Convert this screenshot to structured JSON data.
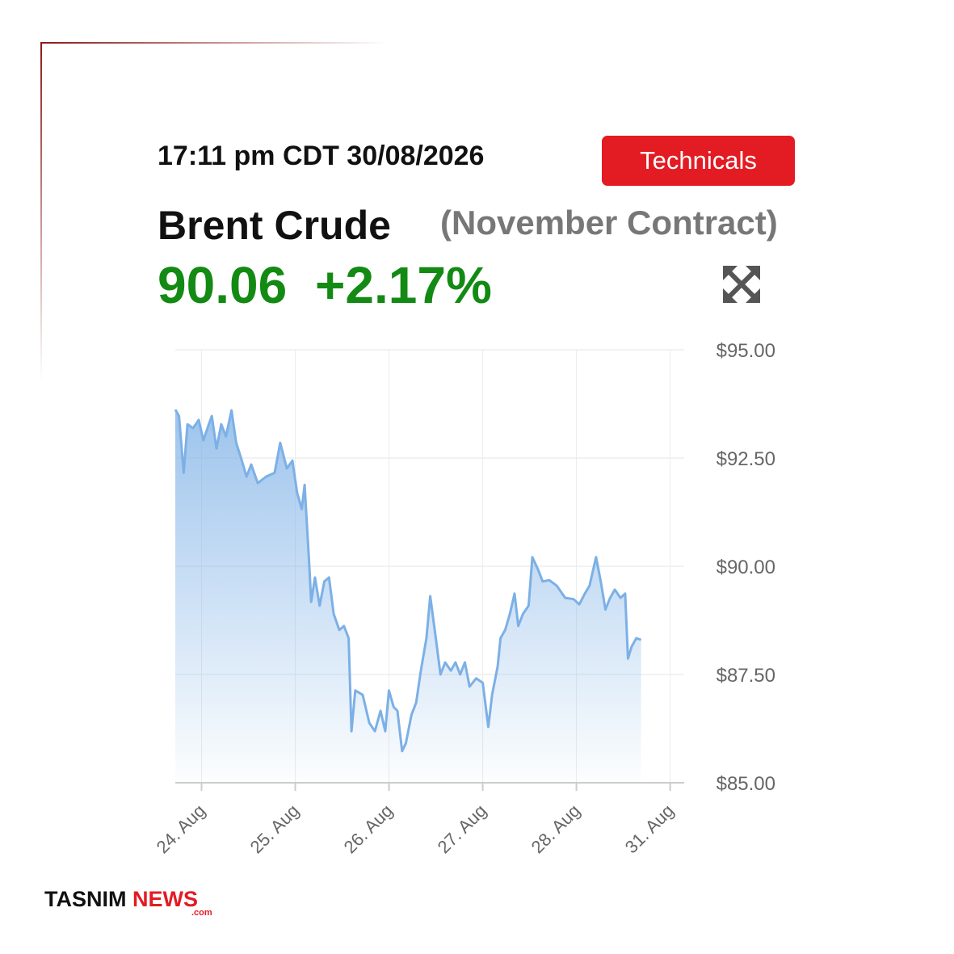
{
  "header": {
    "timestamp": "17:11 pm CDT 30/08/2026",
    "button": "Technicals",
    "title": "Brent Crude",
    "subtitle": "(November Contract)",
    "price": "90.06",
    "change": "+2.17%"
  },
  "chart_data": {
    "type": "area",
    "color": "#7cb0e6",
    "grid": true,
    "x": [
      -0.28,
      -0.24,
      -0.19,
      -0.15,
      -0.09,
      -0.03,
      0.02,
      0.07,
      0.11,
      0.16,
      0.21,
      0.26,
      0.32,
      0.37,
      0.43,
      0.48,
      0.53,
      0.6,
      0.69,
      0.78,
      0.84,
      0.91,
      0.97,
      1.02,
      1.07,
      1.1,
      1.15,
      1.17,
      1.21,
      1.26,
      1.31,
      1.36,
      1.41,
      1.47,
      1.52,
      1.57,
      1.6,
      1.64,
      1.72,
      1.79,
      1.85,
      1.91,
      1.96,
      2.0,
      2.05,
      2.09,
      2.14,
      2.18,
      2.24,
      2.29,
      2.34,
      2.4,
      2.44,
      2.5,
      2.55,
      2.6,
      2.66,
      2.71,
      2.76,
      2.81,
      2.86,
      2.93,
      3.0,
      3.06,
      3.1,
      3.16,
      3.19,
      3.24,
      3.29,
      3.34,
      3.38,
      3.43,
      3.49,
      3.53,
      3.59,
      3.64,
      3.71,
      3.79,
      3.88,
      3.97,
      4.03,
      4.09,
      4.14,
      4.21,
      4.26,
      4.31,
      4.36,
      4.41,
      4.47,
      4.52,
      4.55,
      4.59,
      4.64,
      4.69
    ],
    "values": [
      93.62,
      93.47,
      92.16,
      93.28,
      93.19,
      93.38,
      92.91,
      93.23,
      93.47,
      92.72,
      93.28,
      93.0,
      93.6,
      92.85,
      92.44,
      92.07,
      92.35,
      91.92,
      92.07,
      92.16,
      92.85,
      92.26,
      92.44,
      91.7,
      91.32,
      91.88,
      90.02,
      89.18,
      89.74,
      89.09,
      89.65,
      89.74,
      88.9,
      88.53,
      88.62,
      88.34,
      86.19,
      87.13,
      87.03,
      86.38,
      86.19,
      86.66,
      86.19,
      87.13,
      86.75,
      86.66,
      85.73,
      85.91,
      86.57,
      86.85,
      87.59,
      88.34,
      89.31,
      88.34,
      87.5,
      87.78,
      87.59,
      87.78,
      87.5,
      87.78,
      87.22,
      87.41,
      87.31,
      86.29,
      87.03,
      87.69,
      88.34,
      88.53,
      88.9,
      89.37,
      88.62,
      88.9,
      89.09,
      90.21,
      89.93,
      89.65,
      89.68,
      89.55,
      89.27,
      89.24,
      89.12,
      89.37,
      89.55,
      90.21,
      89.65,
      89.0,
      89.27,
      89.46,
      89.27,
      89.37,
      87.87,
      88.15,
      88.34,
      88.3
    ],
    "xlim": [
      -0.28,
      5.15
    ],
    "ylim": [
      85,
      95
    ],
    "xticks": [
      {
        "value": 0,
        "label": "24. Aug"
      },
      {
        "value": 1,
        "label": "25. Aug"
      },
      {
        "value": 2,
        "label": "26. Aug"
      },
      {
        "value": 3,
        "label": "27. Aug"
      },
      {
        "value": 4,
        "label": "28. Aug"
      },
      {
        "value": 5,
        "label": "31. Aug"
      }
    ],
    "yticks": [
      {
        "value": 85,
        "label": "$85.00"
      },
      {
        "value": 87.5,
        "label": "$87.50"
      },
      {
        "value": 90,
        "label": "$90.00"
      },
      {
        "value": 92.5,
        "label": "$92.50"
      },
      {
        "value": 95,
        "label": "$95.00"
      }
    ]
  },
  "footer": {
    "brand": "TASNIM",
    "brand2": "NEWS",
    "domain": ".com"
  }
}
